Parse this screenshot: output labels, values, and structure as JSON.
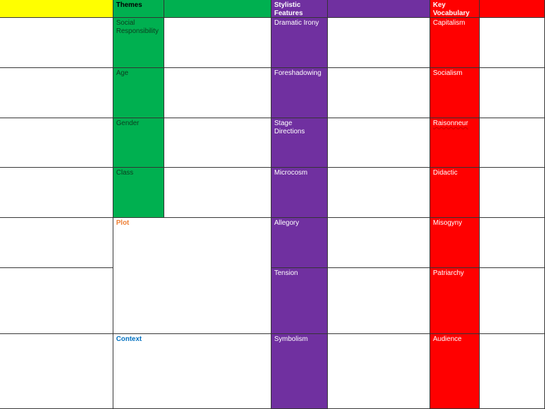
{
  "headers": {
    "themes": "Themes",
    "stylistic": "Stylistic Features",
    "vocab": "Key Vocabulary"
  },
  "themes": [
    "Social Responsibility",
    "Age",
    "Gender",
    "Class"
  ],
  "plot": "Plot",
  "context": "Context",
  "stylistic": [
    "Dramatic Irony",
    "Foreshadowing",
    "Stage Directions",
    "Microcosm",
    "Allegory",
    "Tension",
    "Symbolism"
  ],
  "vocab": [
    "Capitalism",
    "Socialism",
    "Raisonneur",
    "Didactic",
    "Misogyny",
    "Patriarchy",
    "Audience"
  ],
  "colors": {
    "yellow": "#ffff00",
    "green": "#00b050",
    "purple": "#7030a0",
    "red": "#ff0000",
    "plot": "#ed7d31",
    "context": "#0070c0"
  }
}
